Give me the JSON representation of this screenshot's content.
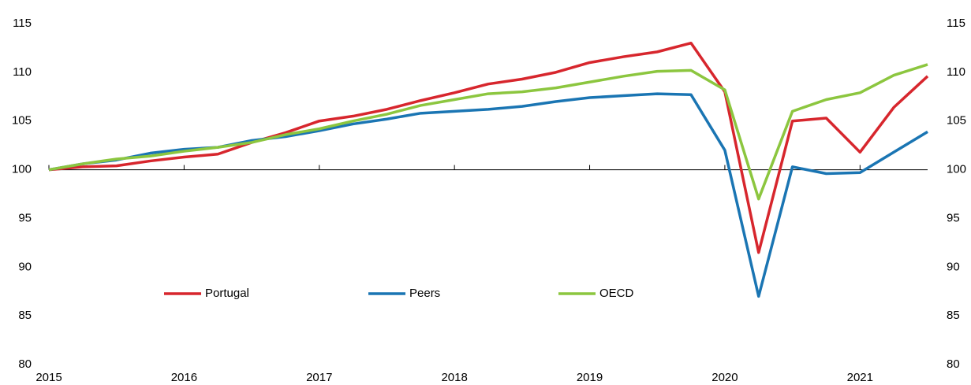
{
  "chart_data": {
    "type": "line",
    "x": [
      2015,
      2015.25,
      2015.5,
      2015.75,
      2016,
      2016.25,
      2016.5,
      2016.75,
      2017,
      2017.25,
      2017.5,
      2017.75,
      2018,
      2018.25,
      2018.5,
      2018.75,
      2019,
      2019.25,
      2019.5,
      2019.75,
      2020,
      2020.25,
      2020.5,
      2020.75,
      2021,
      2021.25,
      2021.5
    ],
    "series": [
      {
        "name": "Portugal",
        "color": "#d7262d",
        "values": [
          100,
          100.3,
          100.4,
          100.9,
          101.3,
          101.6,
          102.8,
          103.8,
          105.0,
          105.5,
          106.2,
          107.1,
          107.9,
          108.8,
          109.3,
          110.0,
          111.0,
          111.6,
          112.1,
          113.0,
          108.0,
          91.5,
          105.0,
          105.3,
          101.8,
          106.4,
          109.6
        ]
      },
      {
        "name": "Peers",
        "color": "#1a75b3",
        "values": [
          100,
          100.6,
          101.0,
          101.7,
          102.1,
          102.3,
          103.0,
          103.4,
          104.0,
          104.7,
          105.2,
          105.8,
          106.0,
          106.2,
          106.5,
          107.0,
          107.4,
          107.6,
          107.8,
          107.7,
          102.0,
          87.0,
          100.3,
          99.6,
          99.7,
          101.8,
          103.9
        ]
      },
      {
        "name": "OECD",
        "color": "#8cc63f",
        "values": [
          100,
          100.6,
          101.1,
          101.4,
          101.9,
          102.3,
          102.8,
          103.6,
          104.2,
          105.0,
          105.7,
          106.6,
          107.2,
          107.8,
          108.0,
          108.4,
          109.0,
          109.6,
          110.1,
          110.2,
          108.2,
          97.0,
          106.0,
          107.2,
          107.9,
          109.7,
          110.8
        ]
      }
    ],
    "xlim": [
      2015,
      2021.5
    ],
    "xticks": [
      2015,
      2016,
      2017,
      2018,
      2019,
      2020,
      2021
    ],
    "ylim": [
      80,
      115
    ],
    "yticks": [
      80,
      85,
      90,
      95,
      100,
      105,
      110,
      115
    ],
    "y2lim": [
      80,
      115
    ],
    "y2ticks": [
      80,
      85,
      90,
      95,
      100,
      105,
      110,
      115
    ],
    "x_axis_crosses": 100,
    "grid": false
  }
}
